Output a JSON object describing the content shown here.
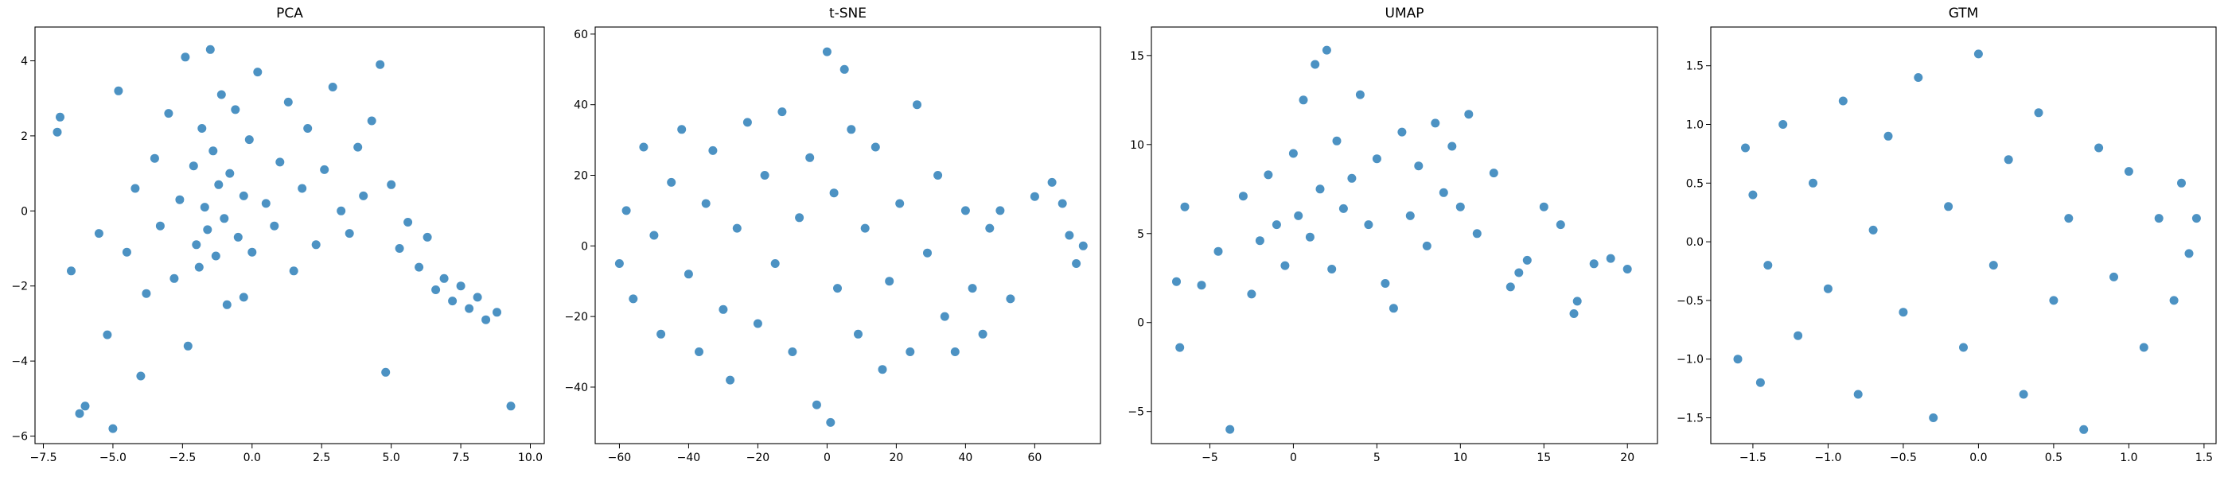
{
  "figure": {
    "background": "#ffffff",
    "marker_color": "#1f77b4"
  },
  "chart_data": [
    {
      "type": "scatter",
      "title": "PCA",
      "xlabel": "",
      "ylabel": "",
      "xlim": [
        -7.8,
        10.5
      ],
      "ylim": [
        -6.2,
        4.9
      ],
      "xticks": [
        -7.5,
        -5.0,
        -2.5,
        0.0,
        2.5,
        5.0,
        7.5,
        10.0
      ],
      "xtick_labels": [
        "−7.5",
        "−5.0",
        "−2.5",
        "0.0",
        "2.5",
        "5.0",
        "7.5",
        "10.0"
      ],
      "yticks": [
        -6,
        -4,
        -2,
        0,
        2,
        4
      ],
      "ytick_labels": [
        "−6",
        "−4",
        "−2",
        "0",
        "2",
        "4"
      ],
      "grid": false,
      "point_count_estimate": 2500,
      "points": [
        [
          -7.0,
          2.1
        ],
        [
          -6.9,
          2.5
        ],
        [
          -6.5,
          -1.6
        ],
        [
          -6.2,
          -5.4
        ],
        [
          -6.0,
          -5.2
        ],
        [
          -5.5,
          -0.6
        ],
        [
          -5.2,
          -3.3
        ],
        [
          -5.0,
          -5.8
        ],
        [
          -4.8,
          3.2
        ],
        [
          -4.5,
          -1.1
        ],
        [
          -4.2,
          0.6
        ],
        [
          -4.0,
          -4.4
        ],
        [
          -3.8,
          -2.2
        ],
        [
          -3.5,
          1.4
        ],
        [
          -3.3,
          -0.4
        ],
        [
          -3.0,
          2.6
        ],
        [
          -2.8,
          -1.8
        ],
        [
          -2.6,
          0.3
        ],
        [
          -2.4,
          4.1
        ],
        [
          -2.3,
          -3.6
        ],
        [
          -2.1,
          1.2
        ],
        [
          -2.0,
          -0.9
        ],
        [
          -1.9,
          -1.5
        ],
        [
          -1.8,
          2.2
        ],
        [
          -1.7,
          0.1
        ],
        [
          -1.6,
          -0.5
        ],
        [
          -1.5,
          4.3
        ],
        [
          -1.4,
          1.6
        ],
        [
          -1.3,
          -1.2
        ],
        [
          -1.2,
          0.7
        ],
        [
          -1.1,
          3.1
        ],
        [
          -1.0,
          -0.2
        ],
        [
          -0.9,
          -2.5
        ],
        [
          -0.8,
          1.0
        ],
        [
          -0.6,
          2.7
        ],
        [
          -0.5,
          -0.7
        ],
        [
          -0.3,
          0.4
        ],
        [
          -0.1,
          1.9
        ],
        [
          0.0,
          -1.1
        ],
        [
          0.2,
          3.7
        ],
        [
          0.5,
          0.2
        ],
        [
          0.8,
          -0.4
        ],
        [
          1.0,
          1.3
        ],
        [
          1.3,
          2.9
        ],
        [
          1.5,
          -1.6
        ],
        [
          1.8,
          0.6
        ],
        [
          2.0,
          2.2
        ],
        [
          2.3,
          -0.9
        ],
        [
          2.6,
          1.1
        ],
        [
          2.9,
          3.3
        ],
        [
          3.2,
          0.0
        ],
        [
          3.5,
          -0.6
        ],
        [
          3.8,
          1.7
        ],
        [
          4.0,
          0.4
        ],
        [
          4.3,
          2.4
        ],
        [
          4.6,
          3.9
        ],
        [
          5.0,
          0.7
        ],
        [
          5.3,
          -1.0
        ],
        [
          5.6,
          -0.3
        ],
        [
          6.0,
          -1.5
        ],
        [
          6.3,
          -0.7
        ],
        [
          6.6,
          -2.1
        ],
        [
          6.9,
          -1.8
        ],
        [
          7.2,
          -2.4
        ],
        [
          7.5,
          -2.0
        ],
        [
          7.8,
          -2.6
        ],
        [
          8.1,
          -2.3
        ],
        [
          8.4,
          -2.9
        ],
        [
          8.8,
          -2.7
        ],
        [
          9.3,
          -5.2
        ],
        [
          4.8,
          -4.3
        ],
        [
          -0.3,
          -2.3
        ]
      ]
    },
    {
      "type": "scatter",
      "title": "t-SNE",
      "xlabel": "",
      "ylabel": "",
      "xlim": [
        -67,
        79
      ],
      "ylim": [
        -56,
        62
      ],
      "xticks": [
        -60,
        -40,
        -20,
        0,
        20,
        40,
        60
      ],
      "xtick_labels": [
        "−60",
        "−40",
        "−20",
        "0",
        "20",
        "40",
        "60"
      ],
      "yticks": [
        -40,
        -20,
        0,
        20,
        40,
        60
      ],
      "ytick_labels": [
        "−40",
        "−20",
        "0",
        "20",
        "40",
        "60"
      ],
      "grid": false,
      "point_count_estimate": 2500,
      "points": [
        [
          -60,
          -5
        ],
        [
          -58,
          10
        ],
        [
          -56,
          -15
        ],
        [
          -53,
          28
        ],
        [
          -50,
          3
        ],
        [
          -48,
          -25
        ],
        [
          -45,
          18
        ],
        [
          -42,
          33
        ],
        [
          -40,
          -8
        ],
        [
          -37,
          -30
        ],
        [
          -35,
          12
        ],
        [
          -33,
          27
        ],
        [
          -30,
          -18
        ],
        [
          -28,
          -38
        ],
        [
          -26,
          5
        ],
        [
          -23,
          35
        ],
        [
          -20,
          -22
        ],
        [
          -18,
          20
        ],
        [
          -15,
          -5
        ],
        [
          -13,
          38
        ],
        [
          -10,
          -30
        ],
        [
          -8,
          8
        ],
        [
          -5,
          25
        ],
        [
          -3,
          -45
        ],
        [
          0,
          55
        ],
        [
          1,
          -50
        ],
        [
          2,
          15
        ],
        [
          3,
          -12
        ],
        [
          5,
          50
        ],
        [
          7,
          33
        ],
        [
          9,
          -25
        ],
        [
          11,
          5
        ],
        [
          14,
          28
        ],
        [
          16,
          -35
        ],
        [
          18,
          -10
        ],
        [
          21,
          12
        ],
        [
          24,
          -30
        ],
        [
          26,
          40
        ],
        [
          29,
          -2
        ],
        [
          32,
          20
        ],
        [
          34,
          -20
        ],
        [
          37,
          -30
        ],
        [
          40,
          10
        ],
        [
          42,
          -12
        ],
        [
          45,
          -25
        ],
        [
          47,
          5
        ],
        [
          50,
          10
        ],
        [
          53,
          -15
        ],
        [
          60,
          14
        ],
        [
          65,
          18
        ],
        [
          68,
          12
        ],
        [
          70,
          3
        ],
        [
          72,
          -5
        ],
        [
          74,
          0
        ]
      ]
    },
    {
      "type": "scatter",
      "title": "UMAP",
      "xlabel": "",
      "ylabel": "",
      "xlim": [
        -8.5,
        21.8
      ],
      "ylim": [
        -6.8,
        16.6
      ],
      "xticks": [
        -5,
        0,
        5,
        10,
        15,
        20
      ],
      "xtick_labels": [
        "−5",
        "0",
        "5",
        "10",
        "15",
        "20"
      ],
      "yticks": [
        -5,
        0,
        5,
        10,
        15
      ],
      "ytick_labels": [
        "−5",
        "0",
        "5",
        "10",
        "15"
      ],
      "grid": false,
      "point_count_estimate": 2500,
      "points": [
        [
          -7.0,
          2.3
        ],
        [
          -6.5,
          6.5
        ],
        [
          -6.8,
          -1.4
        ],
        [
          -5.5,
          2.1
        ],
        [
          -4.5,
          4.0
        ],
        [
          -3.8,
          -6.0
        ],
        [
          -3.0,
          7.1
        ],
        [
          -2.5,
          1.6
        ],
        [
          -2.0,
          4.6
        ],
        [
          -1.5,
          8.3
        ],
        [
          -1.0,
          5.5
        ],
        [
          -0.5,
          3.2
        ],
        [
          0.0,
          9.5
        ],
        [
          0.3,
          6.0
        ],
        [
          0.6,
          12.5
        ],
        [
          1.0,
          4.8
        ],
        [
          1.3,
          14.5
        ],
        [
          1.6,
          7.5
        ],
        [
          2.0,
          15.3
        ],
        [
          2.3,
          3.0
        ],
        [
          2.6,
          10.2
        ],
        [
          3.0,
          6.4
        ],
        [
          3.5,
          8.1
        ],
        [
          4.0,
          12.8
        ],
        [
          4.5,
          5.5
        ],
        [
          5.0,
          9.2
        ],
        [
          5.5,
          2.2
        ],
        [
          6.0,
          0.8
        ],
        [
          6.5,
          10.7
        ],
        [
          7.0,
          6.0
        ],
        [
          7.5,
          8.8
        ],
        [
          8.0,
          4.3
        ],
        [
          8.5,
          11.2
        ],
        [
          9.0,
          7.3
        ],
        [
          9.5,
          9.9
        ],
        [
          10.0,
          6.5
        ],
        [
          10.5,
          11.7
        ],
        [
          11.0,
          5.0
        ],
        [
          12.0,
          8.4
        ],
        [
          13.0,
          2.0
        ],
        [
          13.5,
          2.8
        ],
        [
          14.0,
          3.5
        ],
        [
          15.0,
          6.5
        ],
        [
          16.0,
          5.5
        ],
        [
          16.8,
          0.5
        ],
        [
          17.0,
          1.2
        ],
        [
          18.0,
          3.3
        ],
        [
          19.0,
          3.6
        ],
        [
          20.0,
          3.0
        ]
      ]
    },
    {
      "type": "scatter",
      "title": "GTM",
      "xlabel": "",
      "ylabel": "",
      "xlim": [
        -1.78,
        1.58
      ],
      "ylim": [
        -1.72,
        1.83
      ],
      "xticks": [
        -1.5,
        -1.0,
        -0.5,
        0.0,
        0.5,
        1.0,
        1.5
      ],
      "xtick_labels": [
        "−1.5",
        "−1.0",
        "−0.5",
        "0.0",
        "0.5",
        "1.0",
        "1.5"
      ],
      "yticks": [
        -1.5,
        -1.0,
        -0.5,
        0.0,
        0.5,
        1.0,
        1.5
      ],
      "ytick_labels": [
        "−1.5",
        "−1.0",
        "−0.5",
        "0.0",
        "0.5",
        "1.0",
        "1.5"
      ],
      "grid": false,
      "point_count_estimate": 2500,
      "points": [
        [
          -1.6,
          -1.0
        ],
        [
          -1.55,
          0.8
        ],
        [
          -1.5,
          0.4
        ],
        [
          -1.45,
          -1.2
        ],
        [
          -1.4,
          -0.2
        ],
        [
          -1.3,
          1.0
        ],
        [
          -1.2,
          -0.8
        ],
        [
          -1.1,
          0.5
        ],
        [
          -1.0,
          -0.4
        ],
        [
          -0.9,
          1.2
        ],
        [
          -0.8,
          -1.3
        ],
        [
          -0.7,
          0.1
        ],
        [
          -0.6,
          0.9
        ],
        [
          -0.5,
          -0.6
        ],
        [
          -0.4,
          1.4
        ],
        [
          -0.3,
          -1.5
        ],
        [
          -0.2,
          0.3
        ],
        [
          -0.1,
          -0.9
        ],
        [
          0.0,
          1.6
        ],
        [
          0.1,
          -0.2
        ],
        [
          0.2,
          0.7
        ],
        [
          0.3,
          -1.3
        ],
        [
          0.4,
          1.1
        ],
        [
          0.5,
          -0.5
        ],
        [
          0.6,
          0.2
        ],
        [
          0.7,
          -1.6
        ],
        [
          0.8,
          0.8
        ],
        [
          0.9,
          -0.3
        ],
        [
          1.0,
          0.6
        ],
        [
          1.1,
          -0.9
        ],
        [
          1.2,
          0.2
        ],
        [
          1.3,
          -0.5
        ],
        [
          1.35,
          0.5
        ],
        [
          1.4,
          -0.1
        ],
        [
          1.45,
          0.2
        ]
      ]
    }
  ]
}
